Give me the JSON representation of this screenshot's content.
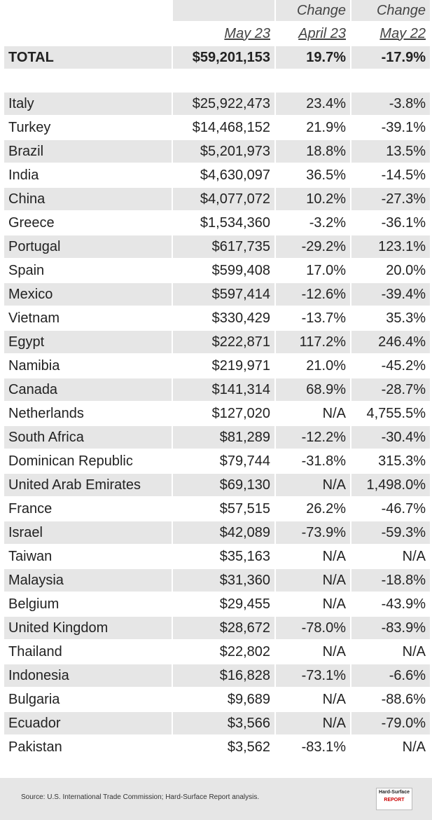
{
  "header": {
    "change_labels": [
      "Change",
      "Change"
    ],
    "period_labels": [
      "May 23",
      "April 23",
      "May 22"
    ]
  },
  "total": {
    "label": "TOTAL",
    "values": [
      "$59,201,153",
      "19.7%",
      "-17.9%"
    ]
  },
  "table": {
    "rows": [
      [
        "Italy",
        "$25,922,473",
        "23.4%",
        "-3.8%"
      ],
      [
        "Turkey",
        "$14,468,152",
        "21.9%",
        "-39.1%"
      ],
      [
        "Brazil",
        "$5,201,973",
        "18.8%",
        "13.5%"
      ],
      [
        "India",
        "$4,630,097",
        "36.5%",
        "-14.5%"
      ],
      [
        "China",
        "$4,077,072",
        "10.2%",
        "-27.3%"
      ],
      [
        "Greece",
        "$1,534,360",
        "-3.2%",
        "-36.1%"
      ],
      [
        "Portugal",
        "$617,735",
        "-29.2%",
        "123.1%"
      ],
      [
        "Spain",
        "$599,408",
        "17.0%",
        "20.0%"
      ],
      [
        "Mexico",
        "$597,414",
        "-12.6%",
        "-39.4%"
      ],
      [
        "Vietnam",
        "$330,429",
        "-13.7%",
        "35.3%"
      ],
      [
        "Egypt",
        "$222,871",
        "117.2%",
        "246.4%"
      ],
      [
        "Namibia",
        "$219,971",
        "21.0%",
        "-45.2%"
      ],
      [
        "Canada",
        "$141,314",
        "68.9%",
        "-28.7%"
      ],
      [
        "Netherlands",
        "$127,020",
        "N/A",
        "4,755.5%"
      ],
      [
        "South Africa",
        "$81,289",
        "-12.2%",
        "-30.4%"
      ],
      [
        "Dominican Republic",
        "$79,744",
        "-31.8%",
        "315.3%"
      ],
      [
        "United Arab Emirates",
        "$69,130",
        "N/A",
        "1,498.0%"
      ],
      [
        "France",
        "$57,515",
        "26.2%",
        "-46.7%"
      ],
      [
        "Israel",
        "$42,089",
        "-73.9%",
        "-59.3%"
      ],
      [
        "Taiwan",
        "$35,163",
        "N/A",
        "N/A"
      ],
      [
        "Malaysia",
        "$31,360",
        "N/A",
        "-18.8%"
      ],
      [
        "Belgium",
        "$29,455",
        "N/A",
        "-43.9%"
      ],
      [
        "United Kingdom",
        "$28,672",
        "-78.0%",
        "-83.9%"
      ],
      [
        "Thailand",
        "$22,802",
        "N/A",
        "N/A"
      ],
      [
        "Indonesia",
        "$16,828",
        "-73.1%",
        "-6.6%"
      ],
      [
        "Bulgaria",
        "$9,689",
        "N/A",
        "-88.6%"
      ],
      [
        "Ecuador",
        "$3,566",
        "N/A",
        "-79.0%"
      ],
      [
        "Pakistan",
        "$3,562",
        "-83.1%",
        "N/A"
      ]
    ]
  },
  "footer": {
    "source": "Source: U.S. International Trade Commission; Hard-Surface Report analysis.",
    "logo": [
      "Hard-Surface",
      "REPORT"
    ]
  }
}
